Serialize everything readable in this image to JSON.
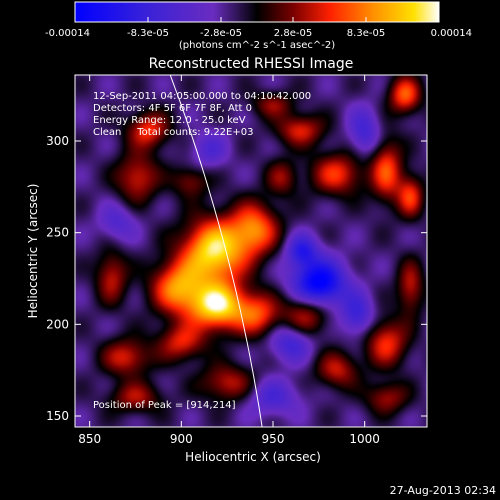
{
  "chart_data": {
    "type": "heatmap",
    "title": "Reconstructed RHESSI Image",
    "xlabel": "Heliocentric X (arcsec)",
    "ylabel": "Heliocentric Y (arcsec)",
    "xlim": [
      842,
      1034
    ],
    "ylim": [
      144,
      336
    ],
    "x_ticks": [
      850,
      900,
      950,
      1000
    ],
    "y_ticks": [
      150,
      200,
      250,
      300
    ],
    "colorbar": {
      "ticks": [
        "-0.00014",
        "-8.3e-05",
        "-2.8e-05",
        "2.8e-05",
        "8.3e-05",
        "0.00014"
      ],
      "unit_label": "(photons cm^-2 s^-1 asec^-2)",
      "range": [
        -0.00014,
        0.00014
      ]
    },
    "annotations": [
      "12-Sep-2011 04:05:00.000 to 04:10:42.000",
      "Detectors: 4F 5F 6F 7F 8F, Att 0",
      "Energy Range: 12.0 - 25.0 keV",
      "Clean     Total counts: 9.22E+03"
    ],
    "peak_label": "Position of Peak = [914,214]",
    "peak_position": [
      914,
      214
    ],
    "blobs": [
      {
        "x": 918,
        "y": 240,
        "sx": 12,
        "sy": 12,
        "a": 1.05
      },
      {
        "x": 920,
        "y": 210,
        "sx": 11,
        "sy": 9,
        "a": 1.05
      },
      {
        "x": 898,
        "y": 220,
        "sx": 10,
        "sy": 10,
        "a": 0.75
      },
      {
        "x": 940,
        "y": 252,
        "sx": 9,
        "sy": 10,
        "a": 0.7
      },
      {
        "x": 942,
        "y": 205,
        "sx": 8,
        "sy": 8,
        "a": 0.55
      },
      {
        "x": 900,
        "y": 190,
        "sx": 9,
        "sy": 7,
        "a": 0.5
      },
      {
        "x": 968,
        "y": 206,
        "sx": 9,
        "sy": 9,
        "a": 0.5
      },
      {
        "x": 882,
        "y": 306,
        "sx": 8,
        "sy": 7,
        "a": 0.55
      },
      {
        "x": 876,
        "y": 280,
        "sx": 8,
        "sy": 9,
        "a": 0.5
      },
      {
        "x": 862,
        "y": 226,
        "sx": 6,
        "sy": 10,
        "a": 0.45
      },
      {
        "x": 870,
        "y": 182,
        "sx": 9,
        "sy": 7,
        "a": 0.5
      },
      {
        "x": 875,
        "y": 160,
        "sx": 10,
        "sy": 6,
        "a": 0.4
      },
      {
        "x": 905,
        "y": 278,
        "sx": 7,
        "sy": 6,
        "a": 0.35
      },
      {
        "x": 925,
        "y": 168,
        "sx": 10,
        "sy": 7,
        "a": 0.45
      },
      {
        "x": 985,
        "y": 282,
        "sx": 10,
        "sy": 8,
        "a": 0.55
      },
      {
        "x": 965,
        "y": 306,
        "sx": 9,
        "sy": 6,
        "a": 0.5
      },
      {
        "x": 1012,
        "y": 284,
        "sx": 6,
        "sy": 12,
        "a": 0.6
      },
      {
        "x": 1025,
        "y": 270,
        "sx": 5,
        "sy": 8,
        "a": 0.55
      },
      {
        "x": 1022,
        "y": 325,
        "sx": 6,
        "sy": 7,
        "a": 0.65
      },
      {
        "x": 1012,
        "y": 190,
        "sx": 8,
        "sy": 9,
        "a": 0.55
      },
      {
        "x": 985,
        "y": 175,
        "sx": 8,
        "sy": 7,
        "a": 0.45
      },
      {
        "x": 1025,
        "y": 220,
        "sx": 5,
        "sy": 10,
        "a": 0.45
      },
      {
        "x": 1012,
        "y": 160,
        "sx": 8,
        "sy": 6,
        "a": 0.4
      },
      {
        "x": 950,
        "y": 320,
        "sx": 8,
        "sy": 5,
        "a": 0.35
      },
      {
        "x": 955,
        "y": 280,
        "sx": 6,
        "sy": 7,
        "a": 0.35
      },
      {
        "x": 975,
        "y": 222,
        "sx": 10,
        "sy": 9,
        "a": -0.95
      },
      {
        "x": 966,
        "y": 240,
        "sx": 6,
        "sy": 6,
        "a": -0.55
      },
      {
        "x": 960,
        "y": 190,
        "sx": 8,
        "sy": 7,
        "a": -0.45
      },
      {
        "x": 996,
        "y": 205,
        "sx": 6,
        "sy": 8,
        "a": -0.45
      },
      {
        "x": 1000,
        "y": 305,
        "sx": 6,
        "sy": 9,
        "a": -0.4
      },
      {
        "x": 950,
        "y": 160,
        "sx": 10,
        "sy": 7,
        "a": -0.35
      },
      {
        "x": 915,
        "y": 295,
        "sx": 7,
        "sy": 7,
        "a": -0.3
      },
      {
        "x": 865,
        "y": 255,
        "sx": 7,
        "sy": 7,
        "a": -0.3
      }
    ],
    "peak_value": 0.00014,
    "baseline": -2e-05
  },
  "footer": {
    "timestamp": "27-Aug-2013 02:34"
  }
}
